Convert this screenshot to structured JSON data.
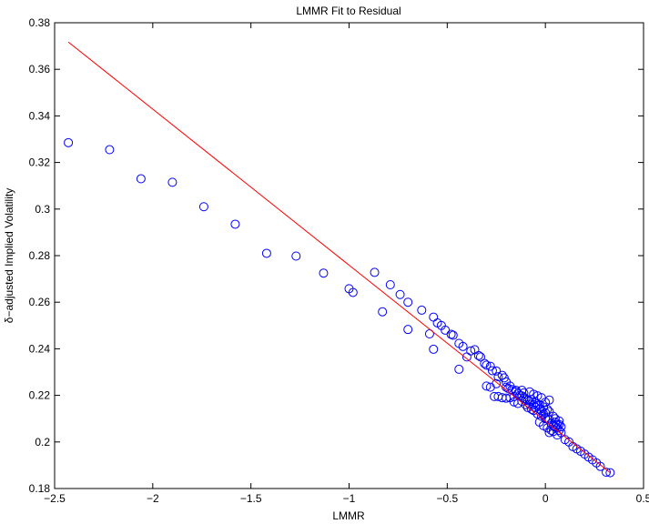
{
  "chart_data": {
    "type": "scatter",
    "title": "LMMR Fit to Residual",
    "xlabel": "LMMR",
    "ylabel": "δ−adjusted Implied Volatility",
    "xlim": [
      -2.5,
      0.5
    ],
    "ylim": [
      0.18,
      0.38
    ],
    "xticks": [
      -2.5,
      -2,
      -1.5,
      -1,
      -0.5,
      0,
      0.5
    ],
    "xtick_labels": [
      "−2.5",
      "−2",
      "−1.5",
      "−1",
      "−0.5",
      "0",
      "0.5"
    ],
    "yticks": [
      0.18,
      0.2,
      0.22,
      0.24,
      0.26,
      0.28,
      0.3,
      0.32,
      0.34,
      0.36,
      0.38
    ],
    "ytick_labels": [
      "0.18",
      "0.2",
      "0.22",
      "0.24",
      "0.26",
      "0.28",
      "0.3",
      "0.32",
      "0.34",
      "0.36",
      "0.38"
    ],
    "grid": false,
    "series": [
      {
        "kind": "scatter",
        "marker": "circle-open",
        "color": "#0000ff",
        "points": [
          [
            -2.43,
            0.3285
          ],
          [
            -2.22,
            0.3255
          ],
          [
            -2.06,
            0.313
          ],
          [
            -1.9,
            0.3115
          ],
          [
            -1.74,
            0.301
          ],
          [
            -1.58,
            0.2935
          ],
          [
            -1.42,
            0.281
          ],
          [
            -1.27,
            0.2798
          ],
          [
            -1.13,
            0.2725
          ],
          [
            -1.0,
            0.2658
          ],
          [
            -0.98,
            0.2642
          ],
          [
            -0.87,
            0.2728
          ],
          [
            -0.83,
            0.2559
          ],
          [
            -0.79,
            0.2675
          ],
          [
            -0.74,
            0.2633
          ],
          [
            -0.7,
            0.26
          ],
          [
            -0.7,
            0.2483
          ],
          [
            -0.63,
            0.2566
          ],
          [
            -0.59,
            0.2464
          ],
          [
            -0.57,
            0.2536
          ],
          [
            -0.55,
            0.2511
          ],
          [
            -0.53,
            0.25
          ],
          [
            -0.51,
            0.248
          ],
          [
            -0.48,
            0.2462
          ],
          [
            -0.47,
            0.2458
          ],
          [
            -0.57,
            0.2398
          ],
          [
            -0.44,
            0.2423
          ],
          [
            -0.42,
            0.241
          ],
          [
            -0.4,
            0.2365
          ],
          [
            -0.38,
            0.2391
          ],
          [
            -0.36,
            0.2396
          ],
          [
            -0.34,
            0.2371
          ],
          [
            -0.33,
            0.2365
          ],
          [
            -0.31,
            0.2337
          ],
          [
            -0.3,
            0.233
          ],
          [
            -0.28,
            0.2325
          ],
          [
            -0.27,
            0.2306
          ],
          [
            -0.25,
            0.2305
          ],
          [
            -0.24,
            0.228
          ],
          [
            -0.22,
            0.2286
          ],
          [
            -0.21,
            0.2275
          ],
          [
            -0.2,
            0.2258
          ],
          [
            -0.19,
            0.223
          ],
          [
            -0.17,
            0.2225
          ],
          [
            -0.16,
            0.2195
          ],
          [
            -0.15,
            0.2222
          ],
          [
            -0.14,
            0.2208
          ],
          [
            -0.13,
            0.22
          ],
          [
            -0.12,
            0.2198
          ],
          [
            -0.11,
            0.2186
          ],
          [
            -0.1,
            0.2185
          ],
          [
            -0.09,
            0.2178
          ],
          [
            -0.08,
            0.2175
          ],
          [
            -0.07,
            0.2182
          ],
          [
            -0.06,
            0.216
          ],
          [
            -0.05,
            0.2148
          ],
          [
            -0.04,
            0.2155
          ],
          [
            -0.03,
            0.214
          ],
          [
            -0.02,
            0.2135
          ],
          [
            -0.01,
            0.212
          ],
          [
            0.0,
            0.2125
          ],
          [
            0.01,
            0.21
          ],
          [
            0.02,
            0.2095
          ],
          [
            0.03,
            0.208
          ],
          [
            0.04,
            0.207
          ],
          [
            0.05,
            0.2065
          ],
          [
            0.06,
            0.206
          ],
          [
            0.07,
            0.205
          ],
          [
            0.08,
            0.204
          ],
          [
            0.1,
            0.201
          ],
          [
            0.12,
            0.2
          ],
          [
            0.14,
            0.198
          ],
          [
            0.16,
            0.197
          ],
          [
            0.18,
            0.196
          ],
          [
            0.2,
            0.1948
          ],
          [
            0.22,
            0.1935
          ],
          [
            0.24,
            0.1923
          ],
          [
            0.26,
            0.191
          ],
          [
            0.28,
            0.1895
          ],
          [
            0.31,
            0.187
          ],
          [
            0.33,
            0.1868
          ],
          [
            -0.44,
            0.2312
          ],
          [
            -0.3,
            0.224
          ],
          [
            -0.28,
            0.2235
          ],
          [
            -0.26,
            0.2195
          ],
          [
            -0.24,
            0.2195
          ],
          [
            -0.22,
            0.219
          ],
          [
            -0.2,
            0.2188
          ],
          [
            -0.18,
            0.219
          ],
          [
            -0.16,
            0.2172
          ],
          [
            -0.14,
            0.2165
          ],
          [
            -0.12,
            0.2175
          ],
          [
            -0.1,
            0.216
          ],
          [
            -0.09,
            0.2148
          ],
          [
            -0.08,
            0.2162
          ],
          [
            -0.07,
            0.214
          ],
          [
            -0.06,
            0.2135
          ],
          [
            -0.05,
            0.217
          ],
          [
            -0.04,
            0.212
          ],
          [
            -0.03,
            0.216
          ],
          [
            -0.02,
            0.211
          ],
          [
            -0.01,
            0.215
          ],
          [
            0.0,
            0.21
          ],
          [
            0.01,
            0.214
          ],
          [
            0.02,
            0.213
          ],
          [
            0.03,
            0.205
          ],
          [
            0.04,
            0.211
          ],
          [
            0.05,
            0.21
          ],
          [
            0.06,
            0.2075
          ],
          [
            0.07,
            0.209
          ],
          [
            0.08,
            0.2065
          ],
          [
            -0.25,
            0.225
          ],
          [
            -0.2,
            0.2235
          ],
          [
            -0.15,
            0.2215
          ],
          [
            -0.11,
            0.221
          ],
          [
            -0.06,
            0.2205
          ],
          [
            -0.02,
            0.219
          ],
          [
            0.02,
            0.218
          ],
          [
            -0.04,
            0.2198
          ],
          [
            0.0,
            0.217
          ],
          [
            -0.08,
            0.2215
          ],
          [
            -0.12,
            0.2222
          ],
          [
            -0.18,
            0.224
          ],
          [
            0.01,
            0.206
          ],
          [
            0.04,
            0.2045
          ],
          [
            0.06,
            0.203
          ],
          [
            0.02,
            0.204
          ],
          [
            -0.01,
            0.207
          ],
          [
            -0.03,
            0.2085
          ],
          [
            0.05,
            0.2085
          ],
          [
            0.07,
            0.2075
          ]
        ]
      },
      {
        "kind": "line",
        "color": "#ff0000",
        "points": [
          [
            -2.43,
            0.3717
          ],
          [
            0.33,
            0.1868
          ]
        ]
      }
    ]
  }
}
